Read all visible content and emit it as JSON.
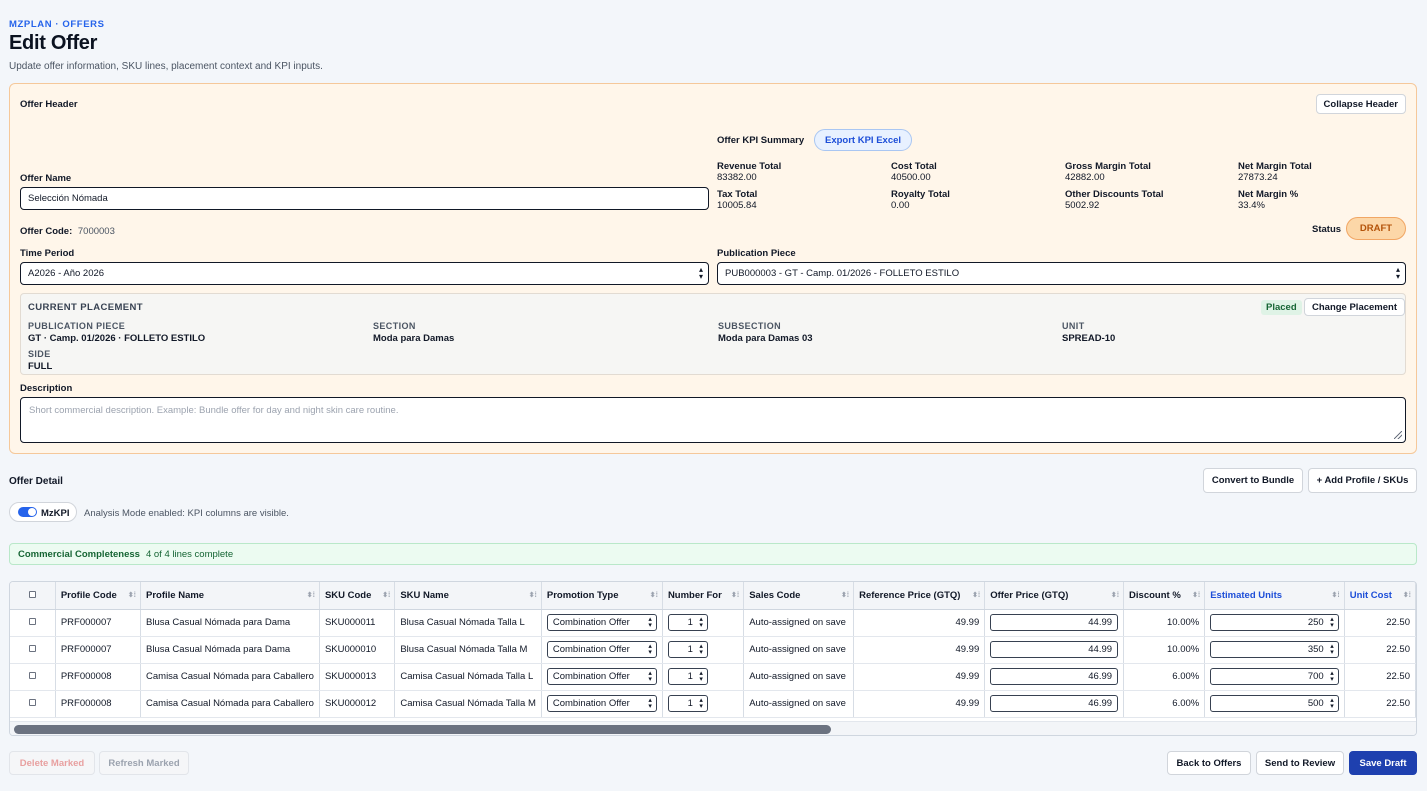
{
  "header": {
    "eyebrow": "MZPLAN · OFFERS",
    "title": "Edit Offer",
    "subtitle": "Update offer information, SKU lines, placement context and KPI inputs."
  },
  "offer_header": {
    "title": "Offer Header",
    "collapse_label": "Collapse Header",
    "kpi_summary_label": "Offer KPI Summary",
    "export_label": "Export KPI Excel",
    "kpis": [
      {
        "label": "Revenue Total",
        "value": "83382.00"
      },
      {
        "label": "Cost Total",
        "value": "40500.00"
      },
      {
        "label": "Gross Margin Total",
        "value": "42882.00"
      },
      {
        "label": "Net Margin Total",
        "value": "27873.24"
      },
      {
        "label": "Tax Total",
        "value": "10005.84"
      },
      {
        "label": "Royalty Total",
        "value": "0.00"
      },
      {
        "label": "Other Discounts Total",
        "value": "5002.92"
      },
      {
        "label": "Net Margin %",
        "value": "33.4%"
      }
    ],
    "offer_name_label": "Offer Name",
    "offer_name_value": "Selección Nómada",
    "offer_code_label": "Offer Code:",
    "offer_code_value": "7000003",
    "status_label": "Status",
    "status_value": "DRAFT",
    "time_period_label": "Time Period",
    "time_period_value": "A2026 - Año 2026",
    "publication_piece_label": "Publication Piece",
    "publication_piece_value": "PUB000003 - GT - Camp. 01/2026 - FOLLETO ESTILO",
    "placement": {
      "title": "CURRENT PLACEMENT",
      "placed_label": "Placed",
      "change_label": "Change Placement",
      "fields": [
        {
          "caption": "PUBLICATION PIECE",
          "value": "GT · Camp. 01/2026 · FOLLETO ESTILO"
        },
        {
          "caption": "SECTION",
          "value": "Moda para Damas"
        },
        {
          "caption": "SUBSECTION",
          "value": "Moda para Damas 03"
        },
        {
          "caption": "UNIT",
          "value": "SPREAD-10"
        },
        {
          "caption": "SIDE",
          "value": "FULL"
        }
      ]
    },
    "description_label": "Description",
    "description_placeholder": "Short commercial description. Example: Bundle offer for day and night skin care routine."
  },
  "offer_detail": {
    "title": "Offer Detail",
    "convert_label": "Convert to Bundle",
    "add_label": "+ Add Profile / SKUs",
    "toggle_label": "MzKPI",
    "analysis_text": "Analysis Mode enabled: KPI columns are visible.",
    "completeness_title": "Commercial Completeness",
    "completeness_text": "4 of 4 lines complete"
  },
  "table": {
    "columns": [
      "Profile Code",
      "Profile Name",
      "SKU Code",
      "SKU Name",
      "Promotion Type",
      "Number For",
      "Sales Code",
      "Reference Price (GTQ)",
      "Offer Price (GTQ)",
      "Discount %",
      "Estimated Units",
      "Unit Cost"
    ],
    "rows": [
      {
        "profile_code": "PRF000007",
        "profile_name": "Blusa Casual Nómada para Dama",
        "sku_code": "SKU000011",
        "sku_name": "Blusa Casual Nómada Talla L",
        "promotion_type": "Combination Offer",
        "number_for": "1",
        "sales_code": "Auto-assigned on save",
        "reference_price": "49.99",
        "offer_price": "44.99",
        "discount": "10.00%",
        "estimated_units": "250",
        "unit_cost": "22.50"
      },
      {
        "profile_code": "PRF000007",
        "profile_name": "Blusa Casual Nómada para Dama",
        "sku_code": "SKU000010",
        "sku_name": "Blusa Casual Nómada Talla M",
        "promotion_type": "Combination Offer",
        "number_for": "1",
        "sales_code": "Auto-assigned on save",
        "reference_price": "49.99",
        "offer_price": "44.99",
        "discount": "10.00%",
        "estimated_units": "350",
        "unit_cost": "22.50"
      },
      {
        "profile_code": "PRF000008",
        "profile_name": "Camisa Casual Nómada para Caballero",
        "sku_code": "SKU000013",
        "sku_name": "Camisa Casual Nómada Talla L",
        "promotion_type": "Combination Offer",
        "number_for": "1",
        "sales_code": "Auto-assigned on save",
        "reference_price": "49.99",
        "offer_price": "46.99",
        "discount": "6.00%",
        "estimated_units": "700",
        "unit_cost": "22.50"
      },
      {
        "profile_code": "PRF000008",
        "profile_name": "Camisa Casual Nómada para Caballero",
        "sku_code": "SKU000012",
        "sku_name": "Camisa Casual Nómada Talla M",
        "promotion_type": "Combination Offer",
        "number_for": "1",
        "sales_code": "Auto-assigned on save",
        "reference_price": "49.99",
        "offer_price": "46.99",
        "discount": "6.00%",
        "estimated_units": "500",
        "unit_cost": "22.50"
      }
    ]
  },
  "footer": {
    "delete_label": "Delete Marked",
    "refresh_label": "Refresh Marked",
    "back_label": "Back to Offers",
    "review_label": "Send to Review",
    "save_label": "Save Draft"
  },
  "colors": {
    "accent": "#2563eb",
    "primary_button": "#1e40af",
    "header_card_bg": "#fff6ea",
    "status_badge_bg": "#fcd7a8",
    "completeness_bg": "#ecfbf1"
  }
}
